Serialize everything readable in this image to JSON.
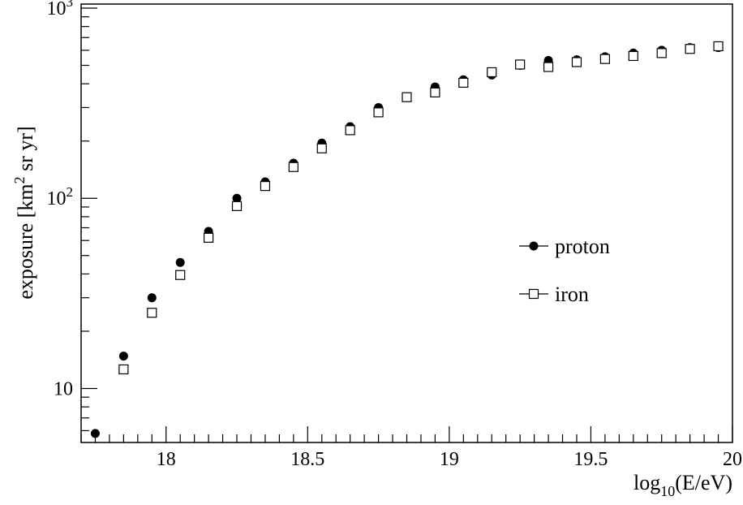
{
  "chart_data": {
    "type": "scatter",
    "title": "",
    "xlabel": "log10(E/eV)",
    "xlabel_parts": {
      "base": "log",
      "sub": "10",
      "rest": "(E/eV)"
    },
    "ylabel": "exposure [km2 sr yr]",
    "ylabel_parts": {
      "pre": "exposure [km",
      "sup": "2",
      "post": " sr yr]"
    },
    "xlim": [
      17.7,
      20.0
    ],
    "ylim": [
      5.2,
      1050
    ],
    "yscale": "log",
    "grid": false,
    "legend_position": "center-right",
    "x_ticks": [
      {
        "value": 18,
        "label": "18"
      },
      {
        "value": 18.5,
        "label": "18.5"
      },
      {
        "value": 19,
        "label": "19"
      },
      {
        "value": 19.5,
        "label": "19.5"
      },
      {
        "value": 20,
        "label": "20"
      }
    ],
    "y_ticks": [
      {
        "value": 10,
        "label": "10"
      },
      {
        "value": 100,
        "label": "10",
        "exp": "2"
      },
      {
        "value": 1000,
        "label": "10",
        "exp": "3"
      }
    ],
    "series": [
      {
        "name": "proton",
        "marker": "filled-circle",
        "color": "#000000",
        "x": [
          17.75,
          17.85,
          17.95,
          18.05,
          18.15,
          18.25,
          18.35,
          18.45,
          18.55,
          18.65,
          18.75,
          18.85,
          18.95,
          19.05,
          19.15,
          19.25,
          19.35,
          19.45,
          19.55,
          19.65,
          19.75,
          19.85,
          19.95
        ],
        "y": [
          5.8,
          14.8,
          30,
          46,
          67,
          100,
          122,
          153,
          195,
          238,
          300,
          340,
          385,
          420,
          445,
          500,
          530,
          535,
          555,
          580,
          600,
          620,
          620
        ]
      },
      {
        "name": "iron",
        "marker": "open-square",
        "color": "#000000",
        "x": [
          17.85,
          17.95,
          18.05,
          18.15,
          18.25,
          18.35,
          18.45,
          18.55,
          18.65,
          18.75,
          18.85,
          18.95,
          19.05,
          19.15,
          19.25,
          19.35,
          19.45,
          19.55,
          19.65,
          19.75,
          19.85,
          19.95
        ],
        "y": [
          12.6,
          25,
          39.5,
          62,
          91,
          116,
          146,
          183,
          228,
          283,
          340,
          360,
          405,
          460,
          505,
          490,
          520,
          540,
          560,
          580,
          610,
          630
        ]
      }
    ]
  }
}
